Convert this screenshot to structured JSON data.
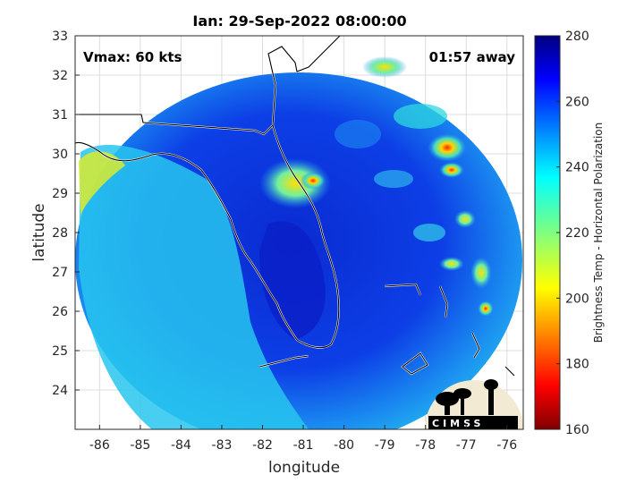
{
  "chart_data": {
    "type": "heatmap",
    "title": "Ian: 29-Sep-2022 08:00:00",
    "xlabel": "longitude",
    "ylabel": "latitude",
    "xlim": [
      -86.6,
      -75.6
    ],
    "ylim": [
      23,
      33
    ],
    "xticks": [
      -86,
      -85,
      -84,
      -83,
      -82,
      -81,
      -80,
      -79,
      -78,
      -77,
      -76
    ],
    "yticks": [
      24,
      25,
      26,
      27,
      28,
      29,
      30,
      31,
      32,
      33
    ],
    "grid": true,
    "colorbar": {
      "label": "Brightness Temp - Horizontal Polarization",
      "range": [
        160,
        280
      ],
      "ticks": [
        160,
        180,
        200,
        220,
        240,
        260,
        280
      ],
      "colormap": "jet"
    },
    "annotations": {
      "vmax": "Vmax: 60 kts",
      "time_offset": "01:57 away"
    },
    "storm_center": {
      "lon": -80.9,
      "lat": 29.3
    },
    "swath_center": {
      "lon": -80.8,
      "lat": 28.0
    }
  },
  "logo": {
    "text": "CIMSS"
  }
}
